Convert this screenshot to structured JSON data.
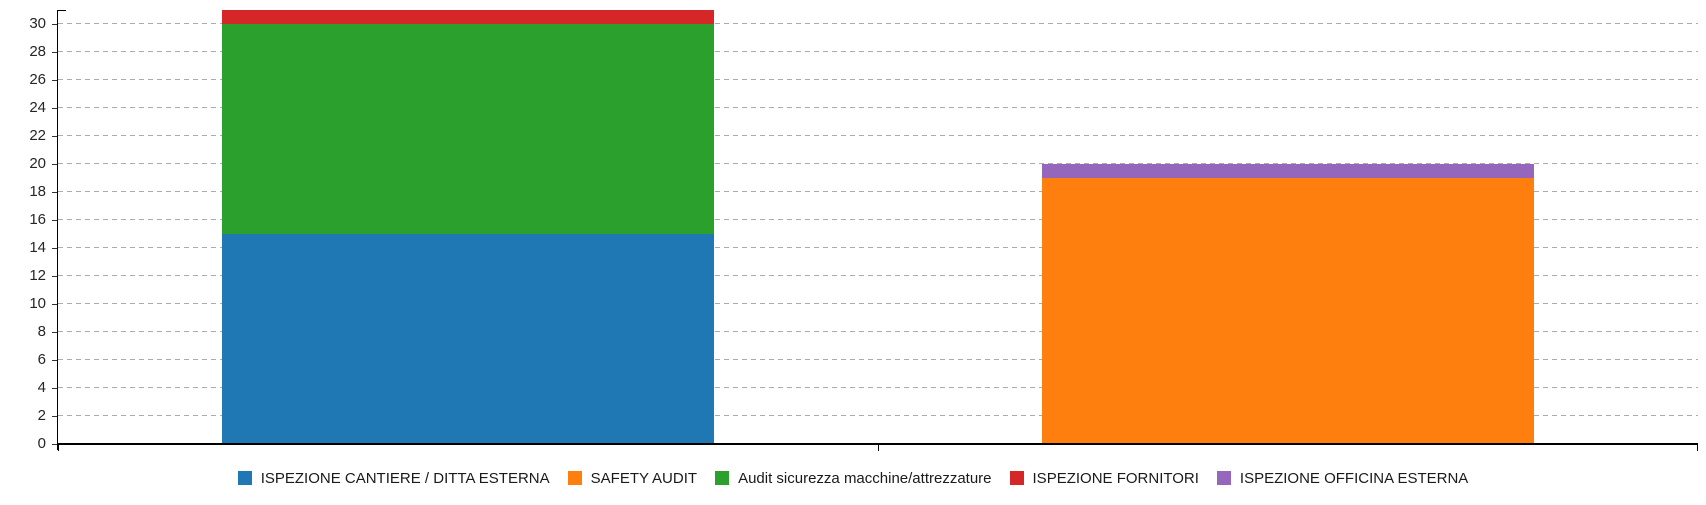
{
  "chart_data": {
    "type": "bar",
    "stacked": true,
    "orientation": "vertical",
    "title": "",
    "xlabel": "",
    "ylabel": "",
    "categories": [
      "",
      ""
    ],
    "series": [
      {
        "name": "ISPEZIONE CANTIERE / DITTA ESTERNA",
        "color": "#1F77B4",
        "values": [
          15,
          0
        ]
      },
      {
        "name": "SAFETY AUDIT",
        "color": "#FF7F0E",
        "values": [
          0,
          19
        ]
      },
      {
        "name": "Audit sicurezza macchine/attrezzature",
        "color": "#2CA02C",
        "values": [
          15,
          0
        ]
      },
      {
        "name": "ISPEZIONE FORNITORI",
        "color": "#D62728",
        "values": [
          1,
          0
        ]
      },
      {
        "name": "ISPEZIONE OFFICINA ESTERNA",
        "color": "#9467BD",
        "values": [
          0,
          1
        ]
      }
    ],
    "stack_totals": [
      31,
      20
    ],
    "ylim": [
      0,
      31
    ],
    "y_ticks": [
      0,
      2,
      4,
      6,
      8,
      10,
      12,
      14,
      16,
      18,
      20,
      22,
      24,
      26,
      28,
      30
    ],
    "grid": {
      "show": true,
      "style": "dashed",
      "color": "#ABABAB"
    },
    "legend_position": "bottom",
    "bar_width_fraction": 0.6,
    "axis_color": "#000000",
    "tick_label_color": "#262626"
  }
}
